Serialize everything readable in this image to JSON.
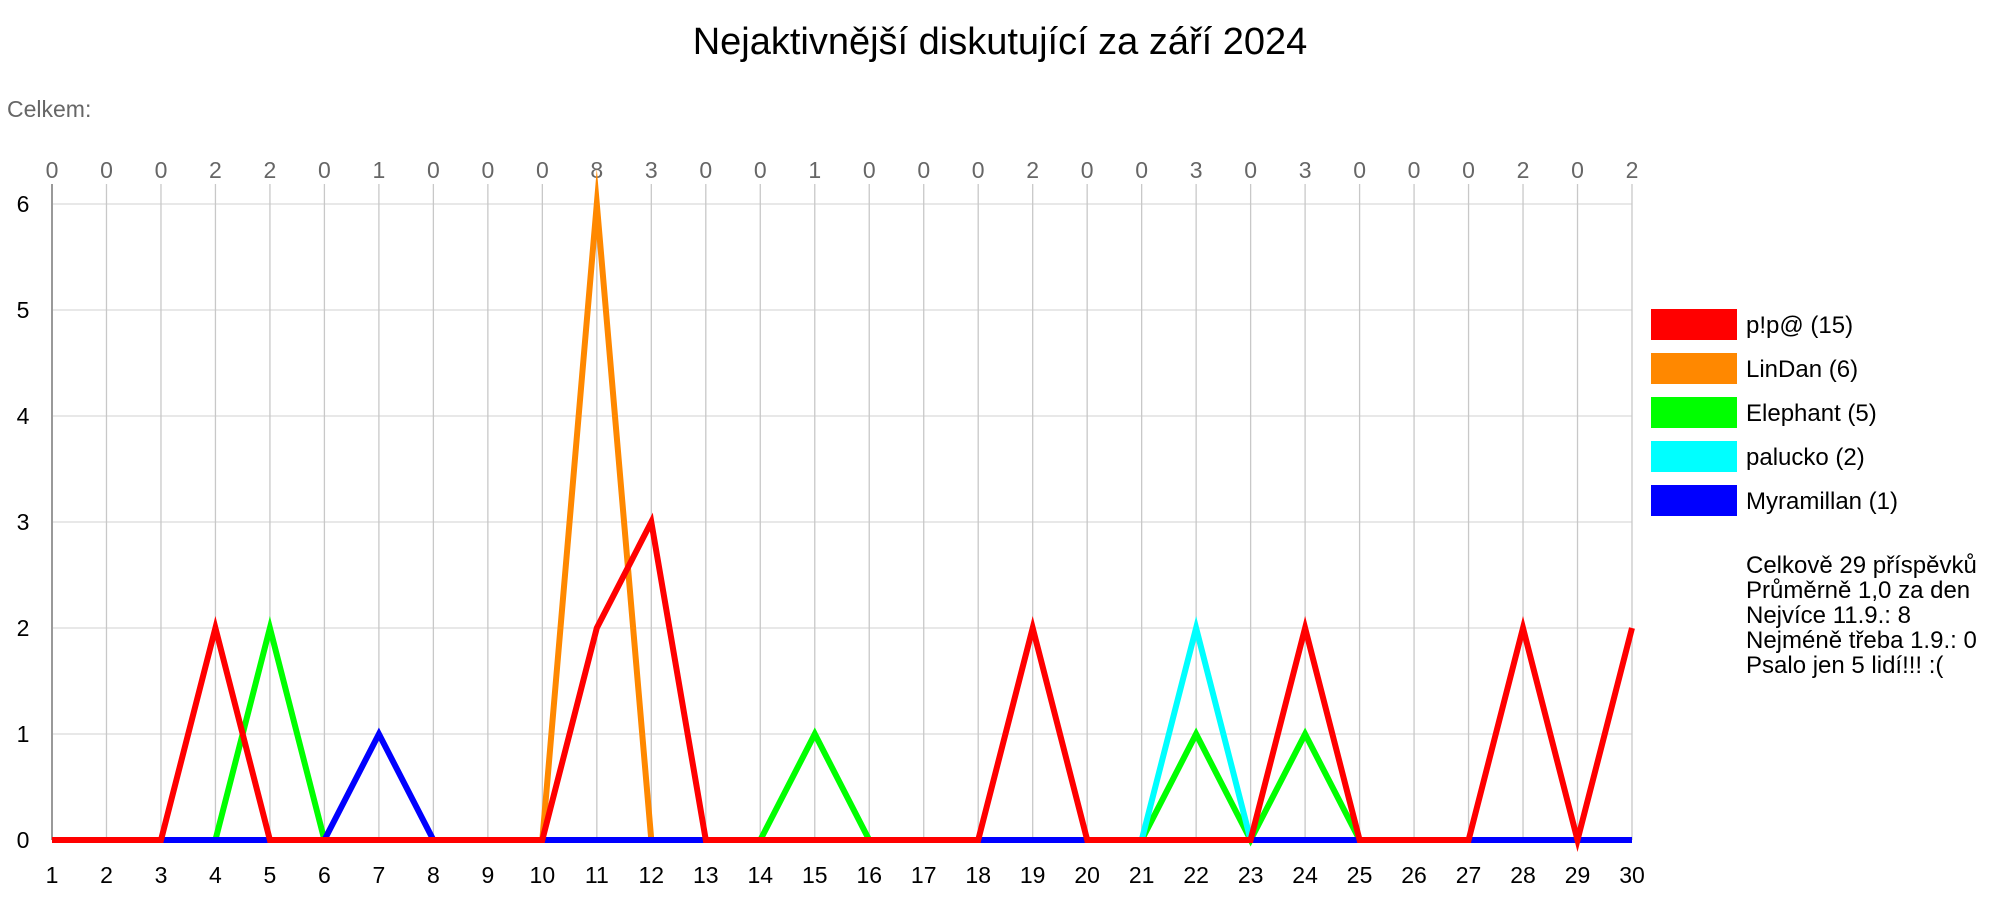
{
  "chart_data": {
    "type": "line",
    "title": "Nejaktivnější diskutující za září 2024",
    "total_label": "Celkem:",
    "xlabel": "",
    "ylabel": "",
    "ylim": [
      0,
      6
    ],
    "y_ticks": [
      0,
      1,
      2,
      3,
      4,
      5,
      6
    ],
    "grid": true,
    "legend_position": "right",
    "categories": [
      1,
      2,
      3,
      4,
      5,
      6,
      7,
      8,
      9,
      10,
      11,
      12,
      13,
      14,
      15,
      16,
      17,
      18,
      19,
      20,
      21,
      22,
      23,
      24,
      25,
      26,
      27,
      28,
      29,
      30
    ],
    "daily_totals": [
      0,
      0,
      0,
      2,
      2,
      0,
      1,
      0,
      0,
      0,
      8,
      3,
      0,
      0,
      1,
      0,
      0,
      0,
      2,
      0,
      0,
      3,
      0,
      3,
      0,
      0,
      0,
      2,
      0,
      2
    ],
    "series": [
      {
        "name": "p!p@ (15)",
        "color": "#ff0000",
        "values": [
          0,
          0,
          0,
          2,
          0,
          0,
          0,
          0,
          0,
          0,
          2,
          3,
          0,
          0,
          0,
          0,
          0,
          0,
          2,
          0,
          0,
          0,
          0,
          2,
          0,
          0,
          0,
          2,
          0,
          2
        ]
      },
      {
        "name": "LinDan (6)",
        "color": "#ff8800",
        "values": [
          0,
          0,
          0,
          0,
          0,
          0,
          0,
          0,
          0,
          0,
          6,
          0,
          0,
          0,
          0,
          0,
          0,
          0,
          0,
          0,
          0,
          0,
          0,
          0,
          0,
          0,
          0,
          0,
          0,
          0
        ]
      },
      {
        "name": "Elephant (5)",
        "color": "#00ff00",
        "values": [
          0,
          0,
          0,
          0,
          2,
          0,
          0,
          0,
          0,
          0,
          0,
          0,
          0,
          0,
          1,
          0,
          0,
          0,
          0,
          0,
          0,
          1,
          0,
          1,
          0,
          0,
          0,
          0,
          0,
          0
        ]
      },
      {
        "name": "palucko (2)",
        "color": "#00ffff",
        "values": [
          0,
          0,
          0,
          0,
          0,
          0,
          0,
          0,
          0,
          0,
          0,
          0,
          0,
          0,
          0,
          0,
          0,
          0,
          0,
          0,
          0,
          2,
          0,
          0,
          0,
          0,
          0,
          0,
          0,
          0
        ]
      },
      {
        "name": "Myramillan (1)",
        "color": "#0000ff",
        "values": [
          0,
          0,
          0,
          0,
          0,
          0,
          1,
          0,
          0,
          0,
          0,
          0,
          0,
          0,
          0,
          0,
          0,
          0,
          0,
          0,
          0,
          0,
          0,
          0,
          0,
          0,
          0,
          0,
          0,
          0
        ]
      }
    ],
    "draw_order": [
      1,
      2,
      3,
      4,
      0
    ],
    "stats": [
      "Celkově 29 příspěvků",
      "Průměrně 1,0 za den",
      "Nejvíce 11.9.: 8",
      "Nejméně třeba 1.9.: 0",
      "Psalo jen 5 lidí!!! :("
    ]
  }
}
